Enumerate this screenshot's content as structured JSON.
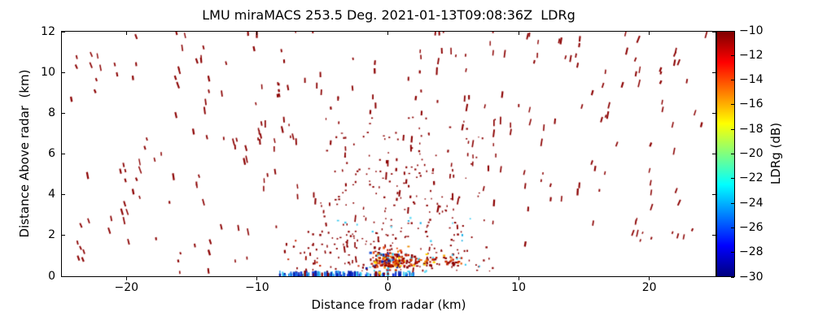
{
  "figure": {
    "title": "LMU miraMACS 253.5 Deg. 2021-01-13T09:08:36Z  LDRg"
  },
  "chart_data": {
    "type": "scatter",
    "title": "LMU miraMACS 253.5 Deg. 2021-01-13T09:08:36Z  LDRg",
    "xlabel": "Distance from radar (km)",
    "ylabel": "Distance Above radar  (km)",
    "xlim": [
      -25,
      25
    ],
    "ylim": [
      0,
      12
    ],
    "grid": false,
    "xtick_values": [
      -20,
      -10,
      0,
      10,
      20
    ],
    "xtick_labels": [
      "−20",
      "−10",
      "0",
      "10",
      "20"
    ],
    "ytick_values": [
      0,
      2,
      4,
      6,
      8,
      10,
      12
    ],
    "ytick_labels": [
      "0",
      "2",
      "4",
      "6",
      "8",
      "10",
      "12"
    ],
    "colorbar": {
      "label": "LDRg (dB)",
      "min": -30,
      "max": -10,
      "tick_values": [
        -10,
        -12,
        -14,
        -16,
        -18,
        -20,
        -22,
        -24,
        -26,
        -28,
        -30
      ],
      "tick_labels": [
        "−10",
        "−12",
        "−14",
        "−16",
        "−18",
        "−20",
        "−22",
        "−24",
        "−26",
        "−28",
        "−30"
      ],
      "colormap": "jet",
      "gradient_top_to_bottom": [
        {
          "pos": 0.0,
          "color": "#7f0000"
        },
        {
          "pos": 0.125,
          "color": "#ff0000"
        },
        {
          "pos": 0.375,
          "color": "#ffff00"
        },
        {
          "pos": 0.625,
          "color": "#00ffff"
        },
        {
          "pos": 0.875,
          "color": "#0000ff"
        },
        {
          "pos": 1.0,
          "color": "#00007f"
        }
      ]
    },
    "point_clusters": [
      {
        "name": "sparse-dash-field",
        "seed": 7,
        "count": 245,
        "dist": "uniform",
        "x_range": [
          -24.3,
          24.4
        ],
        "y_range": [
          0.15,
          12.1
        ],
        "colors": [
          [
            "#8b0000",
            1
          ]
        ],
        "mark": "dash",
        "size_w": [
          1.5,
          2.3
        ],
        "size_h": [
          3,
          9.5
        ],
        "pair_prob": 0.42,
        "avoid": [
          {
            "x": [
              3.6,
              24.6
            ],
            "y": [
              0,
              1.35
            ]
          }
        ]
      },
      {
        "name": "center-dot-field",
        "seed": 21,
        "count": 235,
        "dist": "xcenter-ylow",
        "x_range": [
          -6.8,
          9.2
        ],
        "y_range": [
          0.25,
          7.9
        ],
        "colors": [
          [
            "#8b0000",
            1
          ]
        ],
        "mark": "dot",
        "size_w": [
          1.2,
          2.6
        ],
        "size_h": [
          1.2,
          2.6
        ]
      },
      {
        "name": "center-cyan-dots",
        "seed": 33,
        "count": 26,
        "dist": "xcenter-ylow",
        "x_range": [
          -5.8,
          8.2
        ],
        "y_range": [
          0.2,
          3.4
        ],
        "colors": [
          [
            "#38c8ee",
            0.6
          ],
          [
            "#18aee6",
            0.25
          ],
          [
            "#66dcf6",
            0.15
          ]
        ],
        "mark": "dot",
        "size_w": [
          1.6,
          2.8
        ],
        "size_h": [
          1.6,
          2.8
        ]
      },
      {
        "name": "surface-blue-band",
        "seed": 45,
        "count": 125,
        "dist": "surface",
        "x_range": [
          -8.4,
          1.9
        ],
        "y_range": [
          0,
          0.3
        ],
        "colors": [
          [
            "#0a1fb0",
            0.2
          ],
          [
            "#1238d8",
            0.2
          ],
          [
            "#1b64e0",
            0.15
          ],
          [
            "#2898e8",
            0.15
          ],
          [
            "#38c8f0",
            0.18
          ],
          [
            "#8b0000",
            0.12
          ]
        ],
        "mark": "bar",
        "size_w": [
          1.4,
          3
        ],
        "size_h": [
          2,
          7
        ]
      },
      {
        "name": "radar-core-cluster",
        "seed": 58,
        "count": 150,
        "dist": "gauss",
        "center": [
          0.15,
          0.72
        ],
        "std": [
          0.75,
          0.3
        ],
        "x_range": [
          -1.9,
          2.1
        ],
        "y_range": [
          0.12,
          1.5
        ],
        "colors": [
          [
            "#8b0000",
            0.3
          ],
          [
            "#c41e0a",
            0.18
          ],
          [
            "#e8490f",
            0.13
          ],
          [
            "#f08c00",
            0.1
          ],
          [
            "#ffd300",
            0.08
          ],
          [
            "#38c8f0",
            0.09
          ],
          [
            "#1e50d2",
            0.07
          ],
          [
            "#0a1fb0",
            0.05
          ]
        ],
        "mark": "dot",
        "size_w": [
          1.7,
          3.3
        ],
        "size_h": [
          1.7,
          3.3
        ]
      },
      {
        "name": "east-red-band",
        "seed": 66,
        "count": 80,
        "dist": "uniform",
        "x_range": [
          0.9,
          5.6
        ],
        "y_range": [
          0.5,
          1.08
        ],
        "colors": [
          [
            "#8b0000",
            0.44
          ],
          [
            "#c42000",
            0.24
          ],
          [
            "#e86410",
            0.16
          ],
          [
            "#f0a400",
            0.09
          ],
          [
            "#ffd300",
            0.04
          ],
          [
            "#38c8f0",
            0.03
          ]
        ],
        "mark": "dot",
        "size_w": [
          1.8,
          3.6
        ],
        "size_h": [
          1.6,
          2.8
        ]
      },
      {
        "name": "west-low-mixed",
        "seed": 74,
        "count": 42,
        "dist": "uniform",
        "x_range": [
          -8.2,
          -0.8
        ],
        "y_range": [
          0.3,
          2.3
        ],
        "colors": [
          [
            "#8b0000",
            0.78
          ],
          [
            "#38c8f0",
            0.13
          ],
          [
            "#c42000",
            0.09
          ]
        ],
        "mark": "dot",
        "size_w": [
          1.4,
          2.6
        ],
        "size_h": [
          1.4,
          2.6
        ]
      }
    ]
  }
}
